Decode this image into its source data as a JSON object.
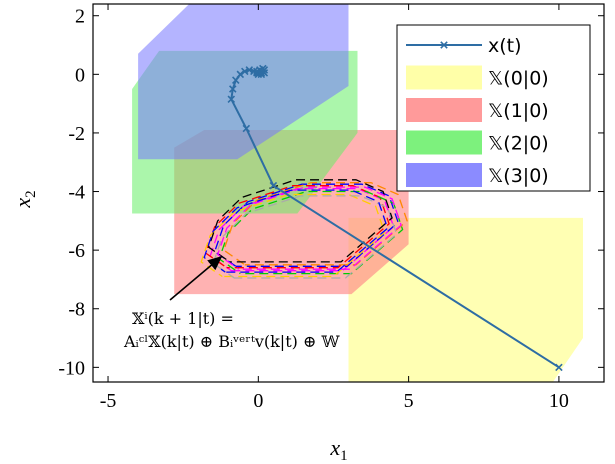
{
  "chart_data": {
    "type": "line",
    "xlabel": "x",
    "xlabel_sub": "1",
    "ylabel": "x",
    "ylabel_sub": "2",
    "xlim": [
      -5.5,
      11.5
    ],
    "ylim": [
      -10.5,
      2.4
    ],
    "xticks": [
      -5,
      0,
      5,
      10
    ],
    "xtick_labels": [
      "-5",
      "0",
      "5",
      "10"
    ],
    "yticks": [
      2,
      0,
      -2,
      -4,
      -6,
      -8,
      -10
    ],
    "ytick_labels": [
      "2",
      "0",
      "-2",
      "-4",
      "-6",
      "-8",
      "-10"
    ],
    "legend_position": "top-right",
    "regions": [
      {
        "name": "𝕏(0|0)",
        "color": "#ffff99",
        "opacity": 0.75,
        "points": [
          [
            3.0,
            -4.9
          ],
          [
            10.8,
            -4.9
          ],
          [
            10.8,
            -9.0
          ],
          [
            9.8,
            -10.5
          ],
          [
            3.0,
            -10.5
          ]
        ]
      },
      {
        "name": "𝕏(1|0)",
        "color": "#ff8888",
        "opacity": 0.65,
        "points": [
          [
            -1.8,
            -1.9
          ],
          [
            5.0,
            -1.9
          ],
          [
            5.0,
            -5.8
          ],
          [
            3.1,
            -7.5
          ],
          [
            -2.8,
            -7.5
          ],
          [
            -2.8,
            -2.5
          ]
        ]
      },
      {
        "name": "𝕏(2|0)",
        "color": "#66ee66",
        "opacity": 0.55,
        "points": [
          [
            -3.3,
            0.8
          ],
          [
            3.3,
            0.8
          ],
          [
            3.3,
            -2.0
          ],
          [
            1.3,
            -4.75
          ],
          [
            -4.2,
            -4.75
          ],
          [
            -4.2,
            -0.5
          ]
        ]
      },
      {
        "name": "𝕏(3|0)",
        "color": "#7777ff",
        "opacity": 0.55,
        "points": [
          [
            -2.3,
            2.4
          ],
          [
            3.0,
            2.4
          ],
          [
            3.0,
            -0.4
          ],
          [
            -0.7,
            -2.9
          ],
          [
            -4.0,
            -2.9
          ],
          [
            -4.0,
            0.7
          ]
        ]
      }
    ],
    "series": [
      {
        "name": "x(t)",
        "color": "#2e6da4",
        "points": [
          [
            10.0,
            -10.0
          ],
          [
            0.5,
            -3.8
          ],
          [
            -0.4,
            -1.85
          ],
          [
            -0.9,
            -0.85
          ],
          [
            -0.85,
            -0.5
          ],
          [
            -0.75,
            -0.2
          ],
          [
            -0.6,
            0.0
          ],
          [
            -0.45,
            0.1
          ],
          [
            -0.3,
            0.15
          ],
          [
            -0.15,
            0.1
          ],
          [
            -0.05,
            0.05
          ],
          [
            0.0,
            0.0
          ],
          [
            0.1,
            0.05
          ],
          [
            0.2,
            0.15
          ],
          [
            0.15,
            0.2
          ],
          [
            0.05,
            0.15
          ],
          [
            -0.05,
            0.1
          ],
          [
            0.0,
            0.05
          ],
          [
            0.1,
            0.0
          ],
          [
            0.2,
            0.05
          ],
          [
            0.15,
            0.1
          ]
        ]
      }
    ],
    "tube_colors": [
      "#ff00ff",
      "#0000ff",
      "#ff0000",
      "#00cc00",
      "#ffcc00",
      "#aaaaaa",
      "#ff8800",
      "#000000"
    ],
    "annotation": {
      "line1": "𝕏ⁱ(k + 1|t) =",
      "line2": "Aᵢᶜˡ𝕏(k|t) ⊕ Bᵢᵛᵉʳᵗv(k|t) ⊕ 𝕎",
      "arrow_to": [
        -1.2,
        -6.2
      ]
    }
  },
  "legend": {
    "items": [
      {
        "label": "x(t)",
        "kind": "line",
        "color": "#2e6da4"
      },
      {
        "label": "𝕏(0|0)",
        "kind": "patch",
        "color": "#ffff99"
      },
      {
        "label": "𝕏(1|0)",
        "kind": "patch",
        "color": "#ff8888"
      },
      {
        "label": "𝕏(2|0)",
        "kind": "patch",
        "color": "#66ee66"
      },
      {
        "label": "𝕏(3|0)",
        "kind": "patch",
        "color": "#7777ff"
      }
    ]
  }
}
